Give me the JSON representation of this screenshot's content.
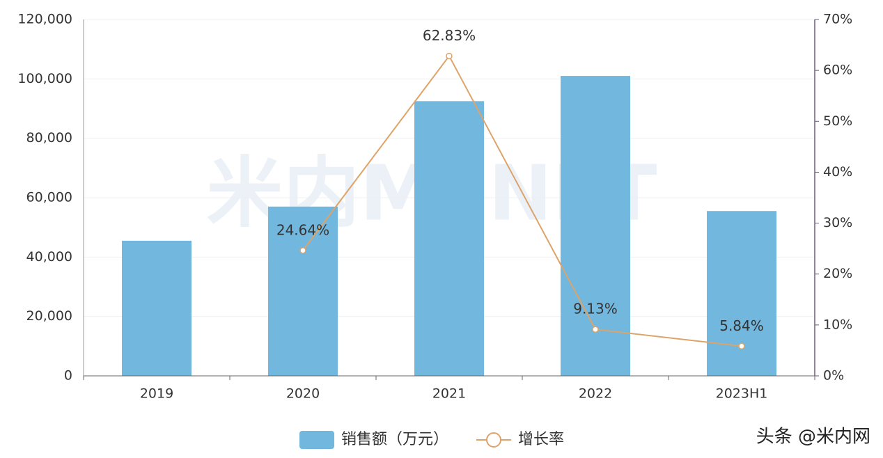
{
  "chart_data": {
    "type": "bar",
    "categories": [
      "2019",
      "2020",
      "2021",
      "2022",
      "2023H1"
    ],
    "series": [
      {
        "name": "销售额（万元）",
        "type": "bar",
        "color": "#72b7dd",
        "values": [
          45500,
          57000,
          92500,
          101000,
          55500
        ]
      },
      {
        "name": "增长率",
        "type": "line",
        "axis": "y2",
        "color": "#dca46a",
        "values": [
          null,
          24.64,
          62.83,
          9.13,
          5.84
        ],
        "value_labels": [
          null,
          "24.64%",
          "62.83%",
          "9.13%",
          "5.84%"
        ]
      }
    ],
    "ylim": [
      0,
      120000
    ],
    "yticks": [
      0,
      {
        "value": 20000,
        "label": "20,000"
      },
      {
        "value": 40000,
        "label": "40,000"
      },
      {
        "value": 60000,
        "label": "60,000"
      },
      {
        "value": 80000,
        "label": "80,000"
      },
      {
        "value": 100000,
        "label": "100,000"
      },
      {
        "value": 120000,
        "label": "120,000"
      }
    ],
    "y2lim": [
      0,
      70
    ],
    "y2ticks": [
      {
        "value": 0,
        "label": "0%"
      },
      {
        "value": 10,
        "label": "10%"
      },
      {
        "value": 20,
        "label": "20%"
      },
      {
        "value": 30,
        "label": "30%"
      },
      {
        "value": 40,
        "label": "40%"
      },
      {
        "value": 50,
        "label": "50%"
      },
      {
        "value": 60,
        "label": "60%"
      },
      {
        "value": 70,
        "label": "70%"
      }
    ],
    "grid": true,
    "legend": "bottom",
    "watermark": "米内MENET",
    "credit": "头条 @米内网"
  }
}
